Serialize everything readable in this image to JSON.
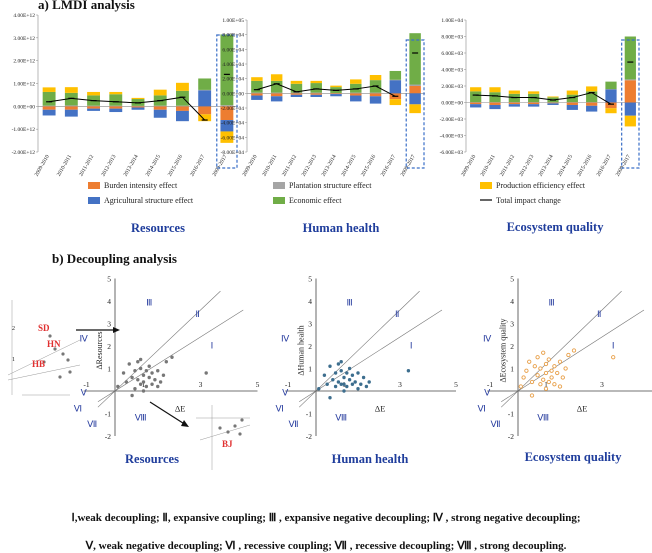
{
  "section_a_title": "a) LMDI analysis",
  "section_b_title": "b) Decoupling analysis",
  "years": [
    "2009-2010",
    "2010-2011",
    "2011-2012",
    "2012-2013",
    "2013-2014",
    "2014-2015",
    "2015-2016",
    "2016-2017",
    "2009-2017"
  ],
  "legend": {
    "burden": "Burden intensity effect",
    "agri": "Agricultural structure effect",
    "plant": "Plantation structure effect",
    "econ": "Economic effect",
    "prod": "Production efficiency effect",
    "total": "Total impact change"
  },
  "colors": {
    "burden": "#ed7d31",
    "agri": "#4472c4",
    "plant": "#a5a5a5",
    "econ": "#70ad47",
    "prod": "#ffc000",
    "total": "#000000",
    "title_blue": "#1f3d9c",
    "roman_blue": "#2a3fa0",
    "highlight": "#e03030",
    "point_gray": "#777777",
    "point_blue": "#3d6e8e",
    "point_orange": "#e8a04a"
  },
  "footer_line1": "Ⅰ,weak decoupling;  Ⅱ, expansive coupling; Ⅲ , expansive negative decoupling; Ⅳ , strong negative decoupling;",
  "footer_line2": "Ⅴ, weak negative decoupling;  Ⅵ , recessive coupling; Ⅶ , recessive decoupling; Ⅷ , strong decoupling.",
  "region_labels": {
    "I": "Ⅰ",
    "II": "Ⅱ",
    "III": "Ⅲ",
    "IV": "Ⅳ",
    "V": "Ⅴ",
    "VI": "Ⅵ",
    "VII": "Ⅶ",
    "VIII": "Ⅷ"
  },
  "inset_labels": {
    "sd": "SD",
    "hn": "HN",
    "hb": "HB",
    "bj": "BJ"
  },
  "chart_data": [
    {
      "type": "bar",
      "stacked": true,
      "title": "Resources",
      "ylim": [
        -2000000000000.0,
        4000000000000.0
      ],
      "yticks": [
        "-2.00E+12",
        "-1.00E+12",
        "0.00E+00",
        "1.00E+12",
        "2.00E+12",
        "3.00E+12",
        "4.00E+12"
      ],
      "ytick_values": [
        -2000000000000.0,
        -1000000000000.0,
        0,
        1000000000000.0,
        2000000000000.0,
        3000000000000.0,
        4000000000000.0
      ],
      "series": [
        {
          "name": "Burden intensity effect",
          "key": "burden",
          "values": [
            -150000000000.0,
            -150000000000.0,
            -100000000000.0,
            -100000000000.0,
            -50000000000.0,
            -150000000000.0,
            -200000000000.0,
            -350000000000.0,
            -600000000000.0
          ]
        },
        {
          "name": "Agricultural structure effect",
          "key": "agri",
          "values": [
            -250000000000.0,
            -300000000000.0,
            -100000000000.0,
            -150000000000.0,
            -100000000000.0,
            -350000000000.0,
            -450000000000.0,
            700000000000.0,
            -500000000000.0
          ]
        },
        {
          "name": "Plantation structure effect",
          "key": "plant",
          "values": [
            30000000000.0,
            40000000000.0,
            30000000000.0,
            30000000000.0,
            20000000000.0,
            30000000000.0,
            30000000000.0,
            20000000000.0,
            50000000000.0
          ]
        },
        {
          "name": "Economic effect",
          "key": "econ",
          "values": [
            600000000000.0,
            550000000000.0,
            450000000000.0,
            500000000000.0,
            300000000000.0,
            450000000000.0,
            650000000000.0,
            500000000000.0,
            3100000000000.0
          ]
        },
        {
          "name": "Production efficiency effect",
          "key": "prod",
          "values": [
            200000000000.0,
            250000000000.0,
            150000000000.0,
            100000000000.0,
            50000000000.0,
            250000000000.0,
            350000000000.0,
            -300000000000.0,
            -500000000000.0
          ]
        }
      ],
      "total": [
        200000000000.0,
        350000000000.0,
        250000000000.0,
        200000000000.0,
        150000000000.0,
        250000000000.0,
        400000000000.0,
        -600000000000.0,
        1400000000000.0
      ]
    },
    {
      "type": "bar",
      "stacked": true,
      "title": "Human health",
      "ylim": [
        -80000.0,
        100000.0
      ],
      "yticks": [
        "-8.00E+04",
        "-6.00E+04",
        "-4.00E+04",
        "-2.00E+04",
        "0.00E+00",
        "2.00E+04",
        "4.00E+04",
        "6.00E+04",
        "8.00E+04",
        "1.00E+05"
      ],
      "ytick_values": [
        -80000.0,
        -60000.0,
        -40000.0,
        -20000.0,
        0,
        20000.0,
        40000.0,
        60000.0,
        80000.0,
        100000.0
      ],
      "series": [
        {
          "name": "Burden intensity effect",
          "key": "burden",
          "values": [
            -3000.0,
            -4000.0,
            -2000.0,
            -2000.0,
            -1000.0,
            -3000.0,
            -4000.0,
            -8000.0,
            10000.0
          ]
        },
        {
          "name": "Agricultural structure effect",
          "key": "agri",
          "values": [
            -6000.0,
            -7000.0,
            -3000.0,
            -3000.0,
            -3000.0,
            -8000.0,
            -10000.0,
            18000.0,
            -15000.0
          ]
        },
        {
          "name": "Plantation structure effect",
          "key": "plant",
          "values": [
            1000.0,
            1000.0,
            1000.0,
            1000.0,
            500.0,
            1000.0,
            1000.0,
            500.0,
            2000.0
          ]
        },
        {
          "name": "Economic effect",
          "key": "econ",
          "values": [
            16000.0,
            16000.0,
            12000.0,
            13000.0,
            8000.0,
            12000.0,
            17000.0,
            12000.0,
            70000.0
          ]
        },
        {
          "name": "Production efficiency effect",
          "key": "prod",
          "values": [
            5000.0,
            9000.0,
            4000.0,
            3000.0,
            2000.0,
            6000.0,
            7000.0,
            -8000.0,
            -12000.0
          ]
        }
      ],
      "total": [
        5000.0,
        13000.0,
        2000.0,
        6000.0,
        4000.0,
        6000.0,
        10000.0,
        -4000.0,
        55000.0
      ]
    },
    {
      "type": "bar",
      "stacked": true,
      "title": "Ecosystem quality",
      "ylim": [
        -6000.0,
        10000.0
      ],
      "yticks": [
        "-6.00E+03",
        "-4.00E+03",
        "-2.00E+03",
        "0.00E+00",
        "2.00E+03",
        "4.00E+03",
        "6.00E+03",
        "8.00E+03",
        "1.00E+04"
      ],
      "ytick_values": [
        -6000.0,
        -4000.0,
        -2000.0,
        0,
        2000.0,
        4000.0,
        6000.0,
        8000.0,
        10000.0
      ],
      "series": [
        {
          "name": "Burden intensity effect",
          "key": "burden",
          "values": [
            -200.0,
            -300.0,
            -200.0,
            -200.0,
            -100.0,
            -300.0,
            -400.0,
            -700.0,
            2700.0
          ]
        },
        {
          "name": "Agricultural structure effect",
          "key": "agri",
          "values": [
            -400.0,
            -500.0,
            -300.0,
            -300.0,
            -200.0,
            -600.0,
            -700.0,
            1600.0,
            -1600.0
          ]
        },
        {
          "name": "Plantation structure effect",
          "key": "plant",
          "values": [
            50.0,
            50.0,
            50.0,
            50.0,
            30.0,
            50.0,
            50.0,
            30.0,
            100.0
          ]
        },
        {
          "name": "Economic effect",
          "key": "econ",
          "values": [
            1300.0,
            1200.0,
            1000.0,
            1000.0,
            600.0,
            900.0,
            1300.0,
            900.0,
            5200.0
          ]
        },
        {
          "name": "Production efficiency effect",
          "key": "prod",
          "values": [
            500.0,
            600.0,
            400.0,
            300.0,
            100.0,
            500.0,
            600.0,
            -600.0,
            -1300.0
          ]
        }
      ],
      "total": [
        900.0,
        800.0,
        600.0,
        600.0,
        300.0,
        600.0,
        1200.0,
        -200.0,
        4900.0
      ]
    },
    {
      "type": "scatter",
      "title": "Resources",
      "xlabel": "ΔE",
      "ylabel": "ΔResources",
      "xlim": [
        -1,
        5
      ],
      "ylim": [
        -2,
        5
      ],
      "xticks": [
        -1,
        1,
        3,
        5
      ],
      "yticks": [
        -2,
        -1,
        1,
        2,
        3,
        4,
        5
      ],
      "points": [
        [
          0.1,
          0.2
        ],
        [
          0.3,
          0.8
        ],
        [
          0.4,
          0.4
        ],
        [
          0.5,
          1.2
        ],
        [
          0.6,
          0.6
        ],
        [
          0.7,
          0.1
        ],
        [
          0.7,
          0.9
        ],
        [
          0.8,
          1.3
        ],
        [
          0.8,
          0.5
        ],
        [
          0.9,
          0.3
        ],
        [
          0.9,
          1.0
        ],
        [
          1.0,
          0.7
        ],
        [
          1.0,
          0.4
        ],
        [
          1.1,
          0.2
        ],
        [
          1.1,
          0.9
        ],
        [
          1.2,
          0.6
        ],
        [
          1.2,
          1.1
        ],
        [
          1.3,
          0.3
        ],
        [
          1.3,
          0.8
        ],
        [
          1.4,
          0.5
        ],
        [
          1.5,
          0.9
        ],
        [
          1.6,
          0.4
        ],
        [
          1.7,
          0.7
        ],
        [
          1.8,
          1.3
        ],
        [
          2.0,
          1.5
        ],
        [
          1.0,
          0.0
        ],
        [
          0.6,
          -0.2
        ],
        [
          3.2,
          0.8
        ],
        [
          0.9,
          1.4
        ],
        [
          1.5,
          0.2
        ]
      ]
    },
    {
      "type": "scatter",
      "title": "Human health",
      "xlabel": "ΔE",
      "ylabel": "ΔHuman health",
      "xlim": [
        -1,
        5
      ],
      "ylim": [
        -2,
        5
      ],
      "xticks": [
        -1,
        1,
        3,
        5
      ],
      "yticks": [
        -2,
        -1,
        1,
        2,
        3,
        4,
        5
      ],
      "points": [
        [
          0.1,
          0.1
        ],
        [
          0.3,
          0.7
        ],
        [
          0.4,
          0.3
        ],
        [
          0.5,
          1.1
        ],
        [
          0.6,
          0.5
        ],
        [
          0.7,
          0.2
        ],
        [
          0.7,
          0.8
        ],
        [
          0.8,
          1.2
        ],
        [
          0.8,
          0.4
        ],
        [
          0.9,
          0.3
        ],
        [
          0.9,
          0.9
        ],
        [
          1.0,
          0.6
        ],
        [
          1.0,
          0.3
        ],
        [
          1.1,
          0.2
        ],
        [
          1.1,
          0.8
        ],
        [
          1.2,
          0.5
        ],
        [
          1.2,
          1.0
        ],
        [
          1.3,
          0.3
        ],
        [
          1.3,
          0.7
        ],
        [
          1.4,
          0.4
        ],
        [
          1.5,
          0.8
        ],
        [
          1.6,
          0.3
        ],
        [
          1.7,
          0.6
        ],
        [
          1.8,
          0.2
        ],
        [
          1.9,
          0.4
        ],
        [
          1.0,
          0.0
        ],
        [
          0.5,
          -0.3
        ],
        [
          3.3,
          0.9
        ],
        [
          0.9,
          1.3
        ],
        [
          1.5,
          0.1
        ]
      ]
    },
    {
      "type": "scatter",
      "title": "Ecosystem quality",
      "xlabel": "ΔE",
      "ylabel": "ΔEcosystem quality",
      "xlim": [
        -1,
        5
      ],
      "ylim": [
        -2,
        5
      ],
      "xticks": [
        -1,
        1,
        3,
        5
      ],
      "yticks": [
        -2,
        -1,
        1,
        2,
        3,
        4,
        5
      ],
      "points": [
        [
          0.1,
          0.2
        ],
        [
          0.2,
          0.6
        ],
        [
          0.3,
          0.9
        ],
        [
          0.4,
          1.3
        ],
        [
          0.5,
          0.4
        ],
        [
          0.6,
          1.1
        ],
        [
          0.7,
          0.7
        ],
        [
          0.7,
          1.5
        ],
        [
          0.8,
          0.3
        ],
        [
          0.8,
          1.0
        ],
        [
          0.9,
          1.7
        ],
        [
          0.9,
          0.5
        ],
        [
          1.0,
          1.2
        ],
        [
          1.0,
          0.8
        ],
        [
          1.1,
          0.4
        ],
        [
          1.1,
          1.4
        ],
        [
          1.2,
          0.9
        ],
        [
          1.2,
          0.6
        ],
        [
          1.3,
          1.1
        ],
        [
          1.3,
          0.3
        ],
        [
          1.4,
          0.8
        ],
        [
          1.5,
          1.3
        ],
        [
          1.6,
          0.6
        ],
        [
          1.7,
          1.0
        ],
        [
          1.8,
          1.6
        ],
        [
          2.0,
          1.8
        ],
        [
          1.0,
          0.1
        ],
        [
          0.5,
          -0.2
        ],
        [
          3.4,
          1.5
        ],
        [
          1.5,
          0.2
        ]
      ]
    }
  ]
}
